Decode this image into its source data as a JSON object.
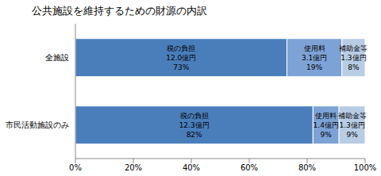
{
  "chart_data": {
    "type": "bar",
    "title": "公共施設を維持するための財源の内訳",
    "orientation": "horizontal",
    "stacked": true,
    "data_labels": true,
    "grid": false,
    "categories": [
      "全施設",
      "市民活動施設のみ"
    ],
    "series": [
      {
        "name": "税の負担",
        "color": "#4a7ebb",
        "values": [
          73,
          82
        ],
        "value_labels": [
          "73%",
          "82%"
        ],
        "amounts": [
          12.0,
          12.3
        ],
        "amount_labels": [
          "12.0億円",
          "12.3億円"
        ]
      },
      {
        "name": "使用料",
        "color": "#7da2d6",
        "values": [
          19,
          9
        ],
        "value_labels": [
          "19%",
          "9%"
        ],
        "amounts": [
          3.1,
          1.4
        ],
        "amount_labels": [
          "3.1億円",
          "1.4億円"
        ]
      },
      {
        "name": "補助金等",
        "color": "#b8cce4",
        "values": [
          8,
          9
        ],
        "value_labels": [
          "8%",
          "9%"
        ],
        "amounts": [
          1.3,
          1.3
        ],
        "amount_labels": [
          "1.3億円",
          "1.3億円"
        ]
      }
    ],
    "xlim": [
      0,
      100
    ],
    "xticks": [
      {
        "value": 0,
        "label": "0%"
      },
      {
        "value": 20,
        "label": "20%"
      },
      {
        "value": 40,
        "label": "40%"
      },
      {
        "value": 60,
        "label": "60%"
      },
      {
        "value": 80,
        "label": "80%"
      },
      {
        "value": 100,
        "label": "100%"
      }
    ]
  }
}
